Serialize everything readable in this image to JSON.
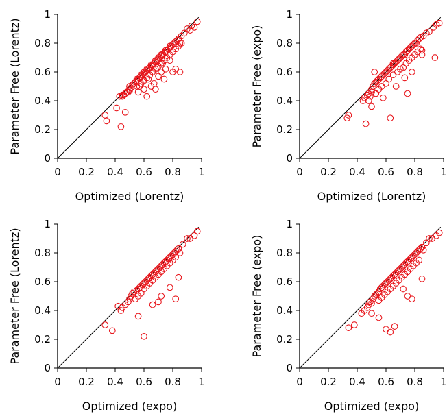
{
  "chart_data": [
    {
      "type": "scatter",
      "xlabel": "Optimized (Lorentz)",
      "ylabel": "Parameter Free (Lorentz)",
      "xlim": [
        0,
        1
      ],
      "ylim": [
        0,
        1
      ],
      "xticks": [
        "0",
        "0.2",
        "0.4",
        "0.6",
        "0.8",
        "1"
      ],
      "yticks": [
        "0",
        "0.2",
        "0.4",
        "0.6",
        "0.8",
        "1"
      ],
      "diagonal": true,
      "grid": false,
      "marker_color": "#e8161c",
      "series": [
        {
          "x": [
            0.33,
            0.34,
            0.41,
            0.43,
            0.44,
            0.45,
            0.46,
            0.47,
            0.47,
            0.48,
            0.49,
            0.5,
            0.5,
            0.51,
            0.52,
            0.53,
            0.54,
            0.55,
            0.55,
            0.56,
            0.57,
            0.58,
            0.58,
            0.59,
            0.6,
            0.6,
            0.61,
            0.62,
            0.62,
            0.63,
            0.64,
            0.65,
            0.65,
            0.66,
            0.67,
            0.68,
            0.68,
            0.69,
            0.7,
            0.7,
            0.71,
            0.72,
            0.72,
            0.73,
            0.74,
            0.75,
            0.75,
            0.76,
            0.77,
            0.78,
            0.78,
            0.79,
            0.8,
            0.81,
            0.82,
            0.83,
            0.84,
            0.85,
            0.86,
            0.88,
            0.9,
            0.92,
            0.93,
            0.95,
            0.97,
            0.45,
            0.5,
            0.55,
            0.58,
            0.6,
            0.62,
            0.64,
            0.66,
            0.68,
            0.7,
            0.72,
            0.74,
            0.76,
            0.78,
            0.8,
            0.82,
            0.84,
            0.86,
            0.62,
            0.68,
            0.74,
            0.8,
            0.56,
            0.65,
            0.7,
            0.75,
            0.6,
            0.67,
            0.72,
            0.82,
            0.85,
            0.78,
            0.73,
            0.69,
            0.63,
            0.57
          ],
          "y": [
            0.3,
            0.26,
            0.35,
            0.43,
            0.22,
            0.44,
            0.44,
            0.32,
            0.45,
            0.46,
            0.46,
            0.48,
            0.5,
            0.49,
            0.51,
            0.52,
            0.53,
            0.54,
            0.55,
            0.55,
            0.56,
            0.57,
            0.58,
            0.58,
            0.59,
            0.6,
            0.6,
            0.61,
            0.62,
            0.62,
            0.63,
            0.64,
            0.65,
            0.65,
            0.66,
            0.67,
            0.68,
            0.68,
            0.69,
            0.7,
            0.7,
            0.71,
            0.72,
            0.72,
            0.73,
            0.74,
            0.75,
            0.75,
            0.76,
            0.77,
            0.78,
            0.78,
            0.79,
            0.8,
            0.81,
            0.82,
            0.83,
            0.8,
            0.85,
            0.87,
            0.9,
            0.89,
            0.92,
            0.91,
            0.95,
            0.43,
            0.47,
            0.5,
            0.52,
            0.54,
            0.56,
            0.58,
            0.6,
            0.62,
            0.64,
            0.66,
            0.68,
            0.7,
            0.72,
            0.74,
            0.76,
            0.78,
            0.8,
            0.43,
            0.48,
            0.55,
            0.6,
            0.46,
            0.5,
            0.57,
            0.62,
            0.48,
            0.52,
            0.6,
            0.62,
            0.6,
            0.68,
            0.66,
            0.63,
            0.55,
            0.5
          ]
        }
      ]
    },
    {
      "type": "scatter",
      "xlabel": "Optimized (Lorentz)",
      "ylabel": "Parameter Free (expo)",
      "xlim": [
        0,
        1
      ],
      "ylim": [
        0,
        1
      ],
      "xticks": [
        "0",
        "0.2",
        "0.4",
        "0.6",
        "0.8",
        "1"
      ],
      "yticks": [
        "0",
        "0.2",
        "0.4",
        "0.6",
        "0.8",
        "1"
      ],
      "diagonal": true,
      "grid": false,
      "marker_color": "#e8161c",
      "series": [
        {
          "x": [
            0.33,
            0.34,
            0.44,
            0.46,
            0.45,
            0.47,
            0.48,
            0.49,
            0.5,
            0.5,
            0.51,
            0.52,
            0.53,
            0.54,
            0.55,
            0.56,
            0.57,
            0.58,
            0.59,
            0.6,
            0.61,
            0.62,
            0.63,
            0.64,
            0.65,
            0.65,
            0.66,
            0.67,
            0.68,
            0.69,
            0.7,
            0.71,
            0.72,
            0.73,
            0.74,
            0.75,
            0.76,
            0.77,
            0.78,
            0.79,
            0.8,
            0.81,
            0.82,
            0.83,
            0.84,
            0.85,
            0.86,
            0.88,
            0.9,
            0.93,
            0.95,
            0.97,
            0.53,
            0.55,
            0.57,
            0.6,
            0.62,
            0.65,
            0.68,
            0.7,
            0.72,
            0.74,
            0.76,
            0.78,
            0.8,
            0.82,
            0.84,
            0.58,
            0.63,
            0.67,
            0.73,
            0.78,
            0.85,
            0.94,
            0.75,
            0.5,
            0.48,
            0.52
          ],
          "y": [
            0.28,
            0.3,
            0.4,
            0.24,
            0.42,
            0.44,
            0.45,
            0.43,
            0.48,
            0.46,
            0.5,
            0.52,
            0.53,
            0.54,
            0.55,
            0.56,
            0.57,
            0.58,
            0.59,
            0.6,
            0.61,
            0.62,
            0.63,
            0.64,
            0.65,
            0.66,
            0.66,
            0.67,
            0.68,
            0.69,
            0.7,
            0.71,
            0.72,
            0.72,
            0.74,
            0.75,
            0.76,
            0.77,
            0.78,
            0.79,
            0.8,
            0.8,
            0.82,
            0.83,
            0.84,
            0.75,
            0.85,
            0.87,
            0.88,
            0.91,
            0.93,
            0.94,
            0.45,
            0.48,
            0.5,
            0.52,
            0.55,
            0.58,
            0.6,
            0.62,
            0.63,
            0.66,
            0.68,
            0.7,
            0.72,
            0.74,
            0.76,
            0.42,
            0.28,
            0.5,
            0.56,
            0.6,
            0.72,
            0.7,
            0.45,
            0.36,
            0.4,
            0.6
          ]
        }
      ]
    },
    {
      "type": "scatter",
      "xlabel": "Optimized (expo)",
      "ylabel": "Parameter Free (Lorentz)",
      "xlim": [
        0,
        1
      ],
      "ylim": [
        0,
        1
      ],
      "xticks": [
        "0",
        "0.2",
        "0.4",
        "0.6",
        "0.8",
        "1"
      ],
      "yticks": [
        "0",
        "0.2",
        "0.4",
        "0.6",
        "0.8",
        "1"
      ],
      "diagonal": true,
      "grid": false,
      "marker_color": "#e8161c",
      "series": [
        {
          "x": [
            0.33,
            0.38,
            0.42,
            0.44,
            0.45,
            0.47,
            0.49,
            0.5,
            0.51,
            0.52,
            0.53,
            0.55,
            0.56,
            0.57,
            0.58,
            0.59,
            0.6,
            0.61,
            0.62,
            0.63,
            0.64,
            0.65,
            0.66,
            0.67,
            0.68,
            0.69,
            0.7,
            0.71,
            0.72,
            0.73,
            0.74,
            0.75,
            0.76,
            0.77,
            0.78,
            0.79,
            0.8,
            0.81,
            0.82,
            0.83,
            0.84,
            0.85,
            0.87,
            0.9,
            0.92,
            0.95,
            0.97,
            0.54,
            0.56,
            0.58,
            0.6,
            0.62,
            0.64,
            0.66,
            0.68,
            0.7,
            0.72,
            0.74,
            0.76,
            0.78,
            0.8,
            0.82,
            0.6,
            0.66,
            0.72,
            0.78,
            0.84,
            0.56,
            0.82,
            0.7
          ],
          "y": [
            0.3,
            0.26,
            0.43,
            0.4,
            0.42,
            0.44,
            0.46,
            0.48,
            0.5,
            0.52,
            0.53,
            0.54,
            0.55,
            0.56,
            0.57,
            0.58,
            0.59,
            0.6,
            0.61,
            0.62,
            0.63,
            0.64,
            0.65,
            0.66,
            0.67,
            0.68,
            0.69,
            0.7,
            0.71,
            0.72,
            0.73,
            0.74,
            0.75,
            0.76,
            0.77,
            0.78,
            0.79,
            0.8,
            0.81,
            0.82,
            0.83,
            0.8,
            0.86,
            0.9,
            0.9,
            0.92,
            0.95,
            0.48,
            0.5,
            0.52,
            0.55,
            0.57,
            0.59,
            0.61,
            0.63,
            0.65,
            0.67,
            0.69,
            0.71,
            0.73,
            0.75,
            0.77,
            0.22,
            0.44,
            0.5,
            0.56,
            0.63,
            0.36,
            0.48,
            0.46
          ]
        }
      ]
    },
    {
      "type": "scatter",
      "xlabel": "Optimized (expo)",
      "ylabel": "Parameter Free (expo)",
      "xlim": [
        0,
        1
      ],
      "ylim": [
        0,
        1
      ],
      "xticks": [
        "0",
        "0.2",
        "0.4",
        "0.6",
        "0.8",
        "1"
      ],
      "yticks": [
        "0",
        "0.2",
        "0.4",
        "0.6",
        "0.8",
        "1"
      ],
      "diagonal": true,
      "grid": false,
      "marker_color": "#e8161c",
      "series": [
        {
          "x": [
            0.34,
            0.38,
            0.43,
            0.45,
            0.47,
            0.48,
            0.49,
            0.5,
            0.51,
            0.52,
            0.53,
            0.54,
            0.55,
            0.56,
            0.57,
            0.58,
            0.59,
            0.6,
            0.61,
            0.62,
            0.63,
            0.64,
            0.65,
            0.66,
            0.67,
            0.68,
            0.69,
            0.7,
            0.71,
            0.72,
            0.73,
            0.74,
            0.75,
            0.76,
            0.77,
            0.78,
            0.79,
            0.8,
            0.81,
            0.82,
            0.83,
            0.84,
            0.85,
            0.86,
            0.88,
            0.9,
            0.92,
            0.95,
            0.97,
            0.55,
            0.57,
            0.59,
            0.61,
            0.63,
            0.65,
            0.67,
            0.69,
            0.71,
            0.73,
            0.75,
            0.77,
            0.79,
            0.81,
            0.83,
            0.6,
            0.63,
            0.66,
            0.72,
            0.78,
            0.85,
            0.55,
            0.5,
            0.75
          ],
          "y": [
            0.28,
            0.3,
            0.38,
            0.4,
            0.42,
            0.44,
            0.46,
            0.45,
            0.48,
            0.5,
            0.51,
            0.52,
            0.53,
            0.55,
            0.56,
            0.57,
            0.58,
            0.59,
            0.6,
            0.61,
            0.62,
            0.63,
            0.64,
            0.65,
            0.66,
            0.67,
            0.68,
            0.69,
            0.7,
            0.71,
            0.72,
            0.73,
            0.74,
            0.75,
            0.76,
            0.77,
            0.78,
            0.79,
            0.8,
            0.81,
            0.82,
            0.83,
            0.84,
            0.82,
            0.87,
            0.9,
            0.9,
            0.92,
            0.94,
            0.47,
            0.49,
            0.51,
            0.53,
            0.55,
            0.57,
            0.59,
            0.61,
            0.63,
            0.65,
            0.67,
            0.69,
            0.71,
            0.73,
            0.75,
            0.27,
            0.25,
            0.29,
            0.55,
            0.48,
            0.62,
            0.35,
            0.38,
            0.5
          ]
        }
      ]
    }
  ]
}
